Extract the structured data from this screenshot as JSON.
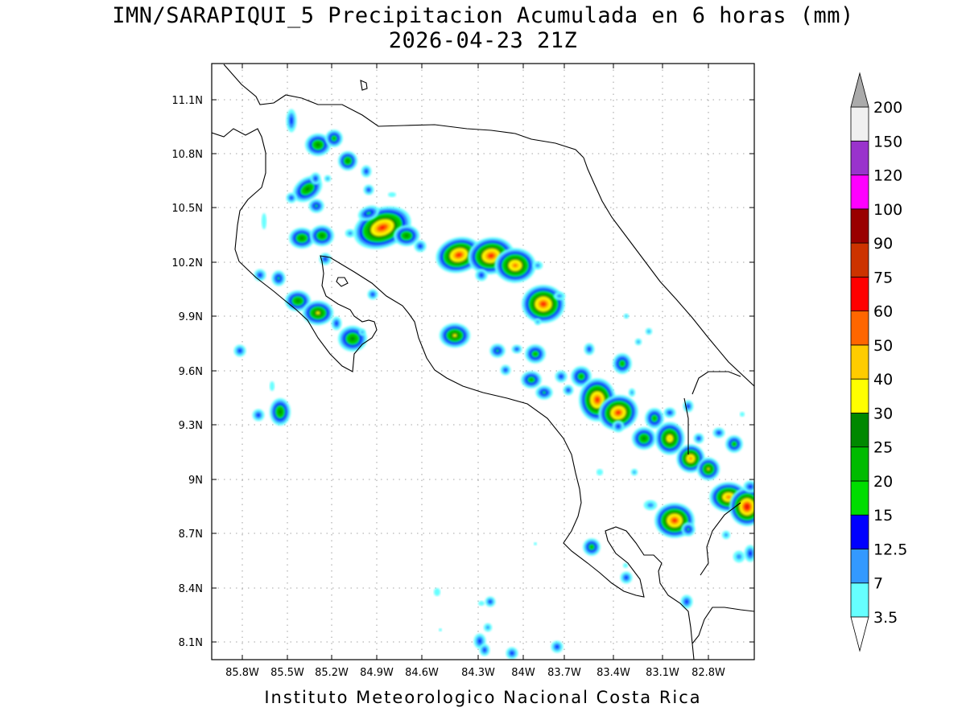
{
  "title": {
    "line1": "IMN/SARAPIQUI_5 Precipitacion Acumulada en 6 horas (mm)",
    "line2": "2026-04-23 21Z"
  },
  "footer": "Instituto Meteorologico Nacional Costa Rica",
  "map": {
    "lon_range": [
      -86.0,
      -82.5
    ],
    "lat_range": [
      8.0,
      11.3
    ],
    "lon_ticks": [
      "85.8W",
      "85.5W",
      "85.2W",
      "84.9W",
      "84.6W",
      "84.3W",
      "84W",
      "83.7W",
      "83.4W",
      "83.1W",
      "82.8W"
    ],
    "lat_ticks": [
      "11.1N",
      "10.8N",
      "10.5N",
      "10.2N",
      "9.9N",
      "9.6N",
      "9.3N",
      "9N",
      "8.7N",
      "8.4N",
      "8.1N"
    ],
    "grid": "dotted"
  },
  "colorbar": {
    "labels": [
      "3.5",
      "7",
      "12.5",
      "15",
      "20",
      "25",
      "30",
      "40",
      "50",
      "60",
      "75",
      "90",
      "100",
      "120",
      "150",
      "200"
    ],
    "colors": [
      "#66ffff",
      "#3399ff",
      "#0000ff",
      "#00dd00",
      "#00bb00",
      "#008800",
      "#ffff00",
      "#ffcc00",
      "#ff6600",
      "#ff0000",
      "#cc3300",
      "#990000",
      "#ff00ff",
      "#9933cc",
      "#f0f0f0",
      "#aaaaaa"
    ]
  }
}
